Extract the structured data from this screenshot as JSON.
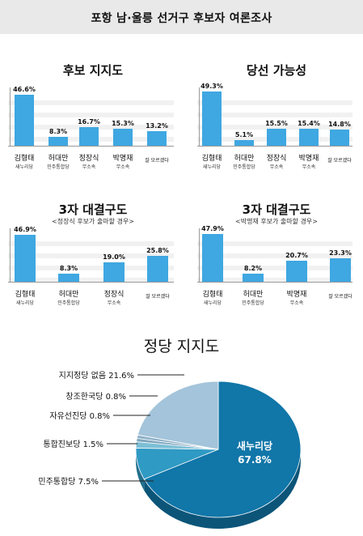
{
  "header": {
    "title": "포항 남·울릉 선거구 후보자 여론조사"
  },
  "chart_data": [
    {
      "type": "bar",
      "title": "후보 지지도",
      "categories": [
        "김형태",
        "허대만",
        "정장식",
        "박명재",
        "잘 모르겠다"
      ],
      "party_labels": [
        "새누리당",
        "민주통합당",
        "무소속",
        "무소속",
        ""
      ],
      "values": [
        46.6,
        8.3,
        16.7,
        15.3,
        13.2
      ],
      "value_labels": [
        "46.6%",
        "8.3%",
        "16.7%",
        "15.3%",
        "13.2%"
      ],
      "color": "#3fa7e1"
    },
    {
      "type": "bar",
      "title": "당선 가능성",
      "categories": [
        "김형태",
        "허대만",
        "정장식",
        "박명재",
        "잘 모르겠다"
      ],
      "party_labels": [
        "새누리당",
        "민주통합당",
        "무소속",
        "무소속",
        ""
      ],
      "values": [
        49.3,
        5.1,
        15.5,
        15.4,
        14.8
      ],
      "value_labels": [
        "49.3%",
        "5.1%",
        "15.5%",
        "15.4%",
        "14.8%"
      ],
      "color": "#3fa7e1"
    },
    {
      "type": "bar",
      "title": "3자 대결구도",
      "subtitle": "<정장식 후보가 출마할 경우>",
      "categories": [
        "김형태",
        "허대만",
        "정장식",
        "잘 모르겠다"
      ],
      "party_labels": [
        "새누리당",
        "민주통합당",
        "무소속",
        ""
      ],
      "values": [
        46.9,
        8.3,
        19.0,
        25.8
      ],
      "value_labels": [
        "46.9%",
        "8.3%",
        "19.0%",
        "25.8%"
      ],
      "color": "#3fa7e1"
    },
    {
      "type": "bar",
      "title": "3자 대결구도",
      "subtitle": "<박명재 후보가 출마할 경우>",
      "categories": [
        "김형태",
        "허대만",
        "박명재",
        "잘 모르겠다"
      ],
      "party_labels": [
        "새누리당",
        "민주통합당",
        "무소속",
        ""
      ],
      "values": [
        47.9,
        8.2,
        20.7,
        23.3
      ],
      "value_labels": [
        "47.9%",
        "8.2%",
        "20.7%",
        "23.3%"
      ],
      "color": "#3fa7e1"
    },
    {
      "type": "pie",
      "title": "정당 지지도",
      "slices": [
        {
          "label": "새누리당",
          "value": 67.8,
          "value_label": "67.8%",
          "color": "#1176a8"
        },
        {
          "label": "민주통합당",
          "value": 7.5,
          "value_label": "민주통합당 7.5%",
          "color": "#2f9ac4"
        },
        {
          "label": "통합진보당",
          "value": 1.5,
          "value_label": "통합진보당 1.5%",
          "color": "#7cbfd6"
        },
        {
          "label": "자유선진당",
          "value": 0.8,
          "value_label": "자유선진당 0.8%",
          "color": "#7fa6bd"
        },
        {
          "label": "창조한국당",
          "value": 0.8,
          "value_label": "창조한국당 0.8%",
          "color": "#8fb2c8"
        },
        {
          "label": "지지정당 없음",
          "value": 21.6,
          "value_label": "지지정당 없음 21.6%",
          "color": "#a3c4da"
        }
      ]
    }
  ]
}
